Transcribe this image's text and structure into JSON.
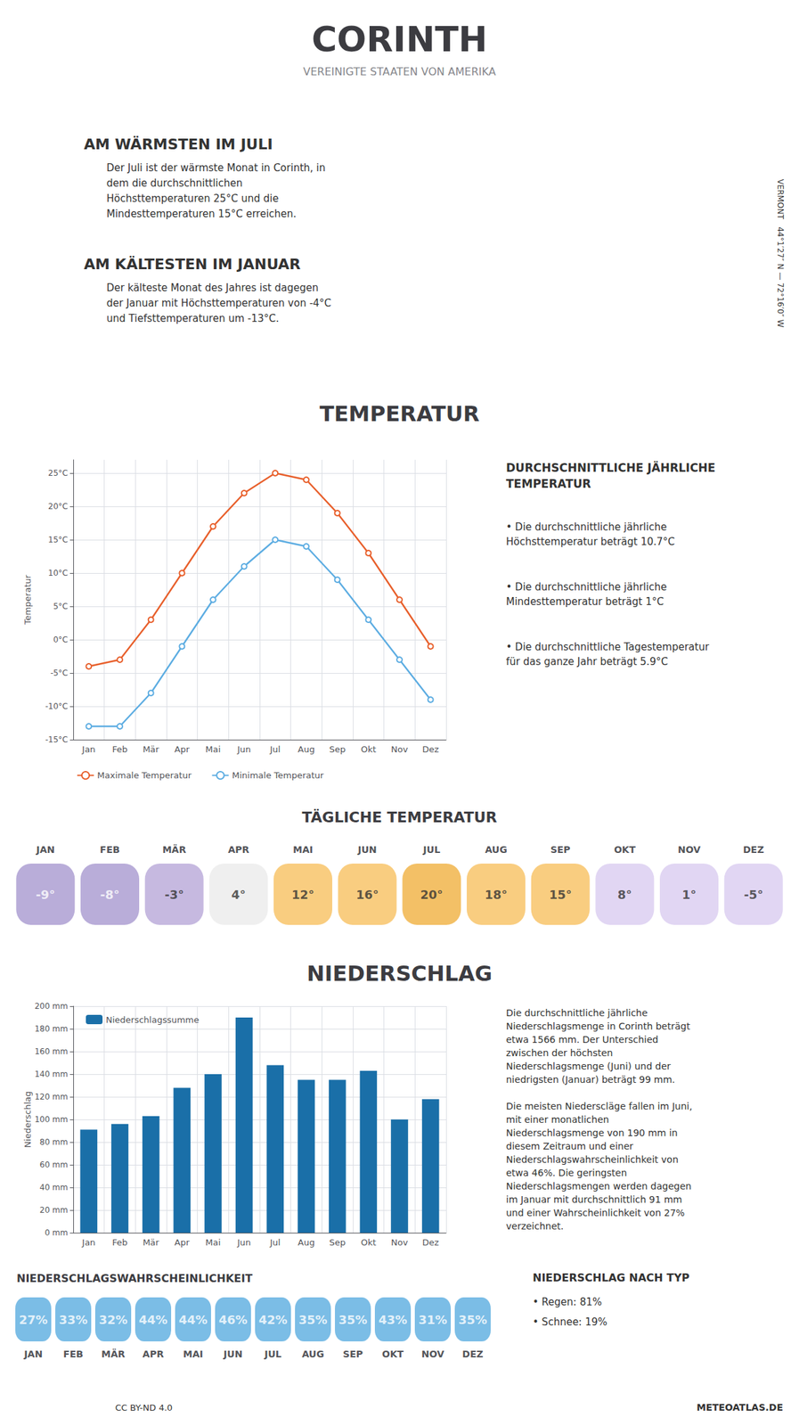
{
  "title": "CORINTH",
  "subtitle": "VEREINIGTE STAATEN VON AMERIKA",
  "annotations": [
    "VERMONT   44°1′27″ N — 72°16′0″ W",
    "AM WÄRMSTEN IM JULI",
    "Der Juli ist der wärmste Monat in Corinth, in\ndem die durchschnittlichen\nHöchsttemperaturen 25°C und die\nMindesttemperaturen 15°C erreichen.",
    "AM KÄLTESTEN IM JANUAR",
    "Der kälteste Monat des Jahres ist dagegen\nder Januar mit Höchsttemperaturen von -4°C\nund Tiefsttemperaturen um -13°C.",
    "CC BY-ND 4.0",
    "METEOATLAS.DE"
  ],
  "chart_data": [
    {
      "type": "line",
      "title": "TEMPERATUR",
      "categories": [
        "Jan",
        "Feb",
        "Mär",
        "Apr",
        "Mai",
        "Jun",
        "Jul",
        "Aug",
        "Sep",
        "Okt",
        "Nov",
        "Dez"
      ],
      "series": [
        {
          "name": "Maximale Temperatur",
          "color": "#e8602c",
          "marker": "circle",
          "values": [
            -4,
            -3,
            3,
            10,
            17,
            22,
            25,
            24,
            19,
            13,
            6,
            -1
          ]
        },
        {
          "name": "Minimale Temperatur",
          "color": "#5dade2",
          "marker": "circle",
          "values": [
            -13,
            -13,
            -8,
            -1,
            6,
            11,
            15,
            14,
            9,
            3,
            -3,
            -9
          ]
        }
      ],
      "ylabel": "Temperatur",
      "ylim": [
        -15,
        27
      ],
      "yticks": [
        {
          "value": -15,
          "label": "-15°C"
        },
        {
          "value": -10,
          "label": "-10°C"
        },
        {
          "value": -5,
          "label": "-5°C"
        },
        {
          "value": 0,
          "label": "0°C"
        },
        {
          "value": 5,
          "label": "5°C"
        },
        {
          "value": 10,
          "label": "10°C"
        },
        {
          "value": 15,
          "label": "15°C"
        },
        {
          "value": 20,
          "label": "20°C"
        },
        {
          "value": 25,
          "label": "25°C"
        }
      ],
      "grid": true,
      "legend": "bottom",
      "annotations": [
        "DURCHSCHNITTLICHE JÄHRLICHE\nTEMPERATUR",
        "• Die durchschnittliche jährliche\nHöchsttemperatur beträgt 10.7°C",
        "• Die durchschnittliche jährliche\nMindesttemperatur beträgt 1°C",
        "• Die durchschnittliche Tagestemperatur\nfür das ganze Jahr beträgt 5.9°C"
      ]
    },
    {
      "type": "table",
      "title": "TÄGLICHE TEMPERATUR",
      "categories": [
        "JAN",
        "FEB",
        "MÄR",
        "APR",
        "MAI",
        "JUN",
        "JUL",
        "AUG",
        "SEP",
        "OKT",
        "NOV",
        "DEZ"
      ],
      "values": [
        -9,
        -8,
        -3,
        4,
        12,
        16,
        20,
        18,
        15,
        8,
        1,
        -5
      ],
      "value_labels": [
        "-9°",
        "-8°",
        "-3°",
        "4°",
        "12°",
        "16°",
        "20°",
        "18°",
        "15°",
        "8°",
        "1°",
        "-5°"
      ],
      "colors": [
        "#a898d0",
        "#a898d0",
        "#b8a8d8",
        "#ebebeb",
        "#f8c060",
        "#f8c060",
        "#f0b040",
        "#f8c060",
        "#f8c060",
        "#daccf0",
        "#daccf0",
        "#daccf0"
      ],
      "data_labels": true
    },
    {
      "type": "bar",
      "title": "NIEDERSCHLAG",
      "categories": [
        "Jan",
        "Feb",
        "Mär",
        "Apr",
        "Mai",
        "Jun",
        "Jul",
        "Aug",
        "Sep",
        "Okt",
        "Nov",
        "Dez"
      ],
      "series": [
        {
          "name": "Niederschlagssumme",
          "color": "#1a6fa8",
          "values": [
            91,
            96,
            103,
            128,
            140,
            190,
            148,
            135,
            135,
            143,
            100,
            118
          ]
        }
      ],
      "ylabel": "Niederschlag",
      "ylim": [
        0,
        200
      ],
      "yticks": [
        {
          "value": 0,
          "label": "0 mm"
        },
        {
          "value": 20,
          "label": "20 mm"
        },
        {
          "value": 40,
          "label": "40 mm"
        },
        {
          "value": 60,
          "label": "60 mm"
        },
        {
          "value": 80,
          "label": "80 mm"
        },
        {
          "value": 100,
          "label": "100 mm"
        },
        {
          "value": 120,
          "label": "120 mm"
        },
        {
          "value": 140,
          "label": "140 mm"
        },
        {
          "value": 160,
          "label": "160 mm"
        },
        {
          "value": 180,
          "label": "180 mm"
        },
        {
          "value": 200,
          "label": "200 mm"
        }
      ],
      "grid": true,
      "legend": "upper left",
      "annotations": [
        "Die durchschnittliche jährliche\nNiederschlagsmenge in Corinth beträgt\netwa 1566 mm. Der Unterschied\nzwischen der höchsten\nNiederschlagsmenge (Juni) und der\nniedrigsten (Januar) beträgt 99 mm.",
        "Die meisten Niederscläge fallen im Juni,\nmit einer monatlichen\nNiederschlagsmenge von 190 mm in\ndiesem Zeitraum und einer\nNiederschlagswahrscheinlichkeit von\netwa 46%. Die geringsten\nNiederschlagsmengen werden dagegen\nim Januar mit durchschnittlich 91 mm\nund einer Wahrscheinlichkeit von 27%\nverzeichnet."
      ]
    },
    {
      "type": "table",
      "title": "NIEDERSCHLAGSWAHRSCHEINLICHKEIT",
      "categories": [
        "JAN",
        "FEB",
        "MÄR",
        "APR",
        "MAI",
        "JUN",
        "JUL",
        "AUG",
        "SEP",
        "OKT",
        "NOV",
        "DEZ"
      ],
      "values": [
        27,
        33,
        32,
        44,
        44,
        46,
        42,
        35,
        35,
        43,
        31,
        35
      ],
      "value_labels": [
        "27%",
        "33%",
        "32%",
        "44%",
        "44%",
        "46%",
        "42%",
        "35%",
        "35%",
        "43%",
        "31%",
        "35%"
      ],
      "color": "#5aade0",
      "data_labels": true,
      "annotations": [
        "NIEDERSCHLAG NACH TYP",
        "• Regen: 81%",
        "• Schnee: 19%"
      ]
    }
  ]
}
